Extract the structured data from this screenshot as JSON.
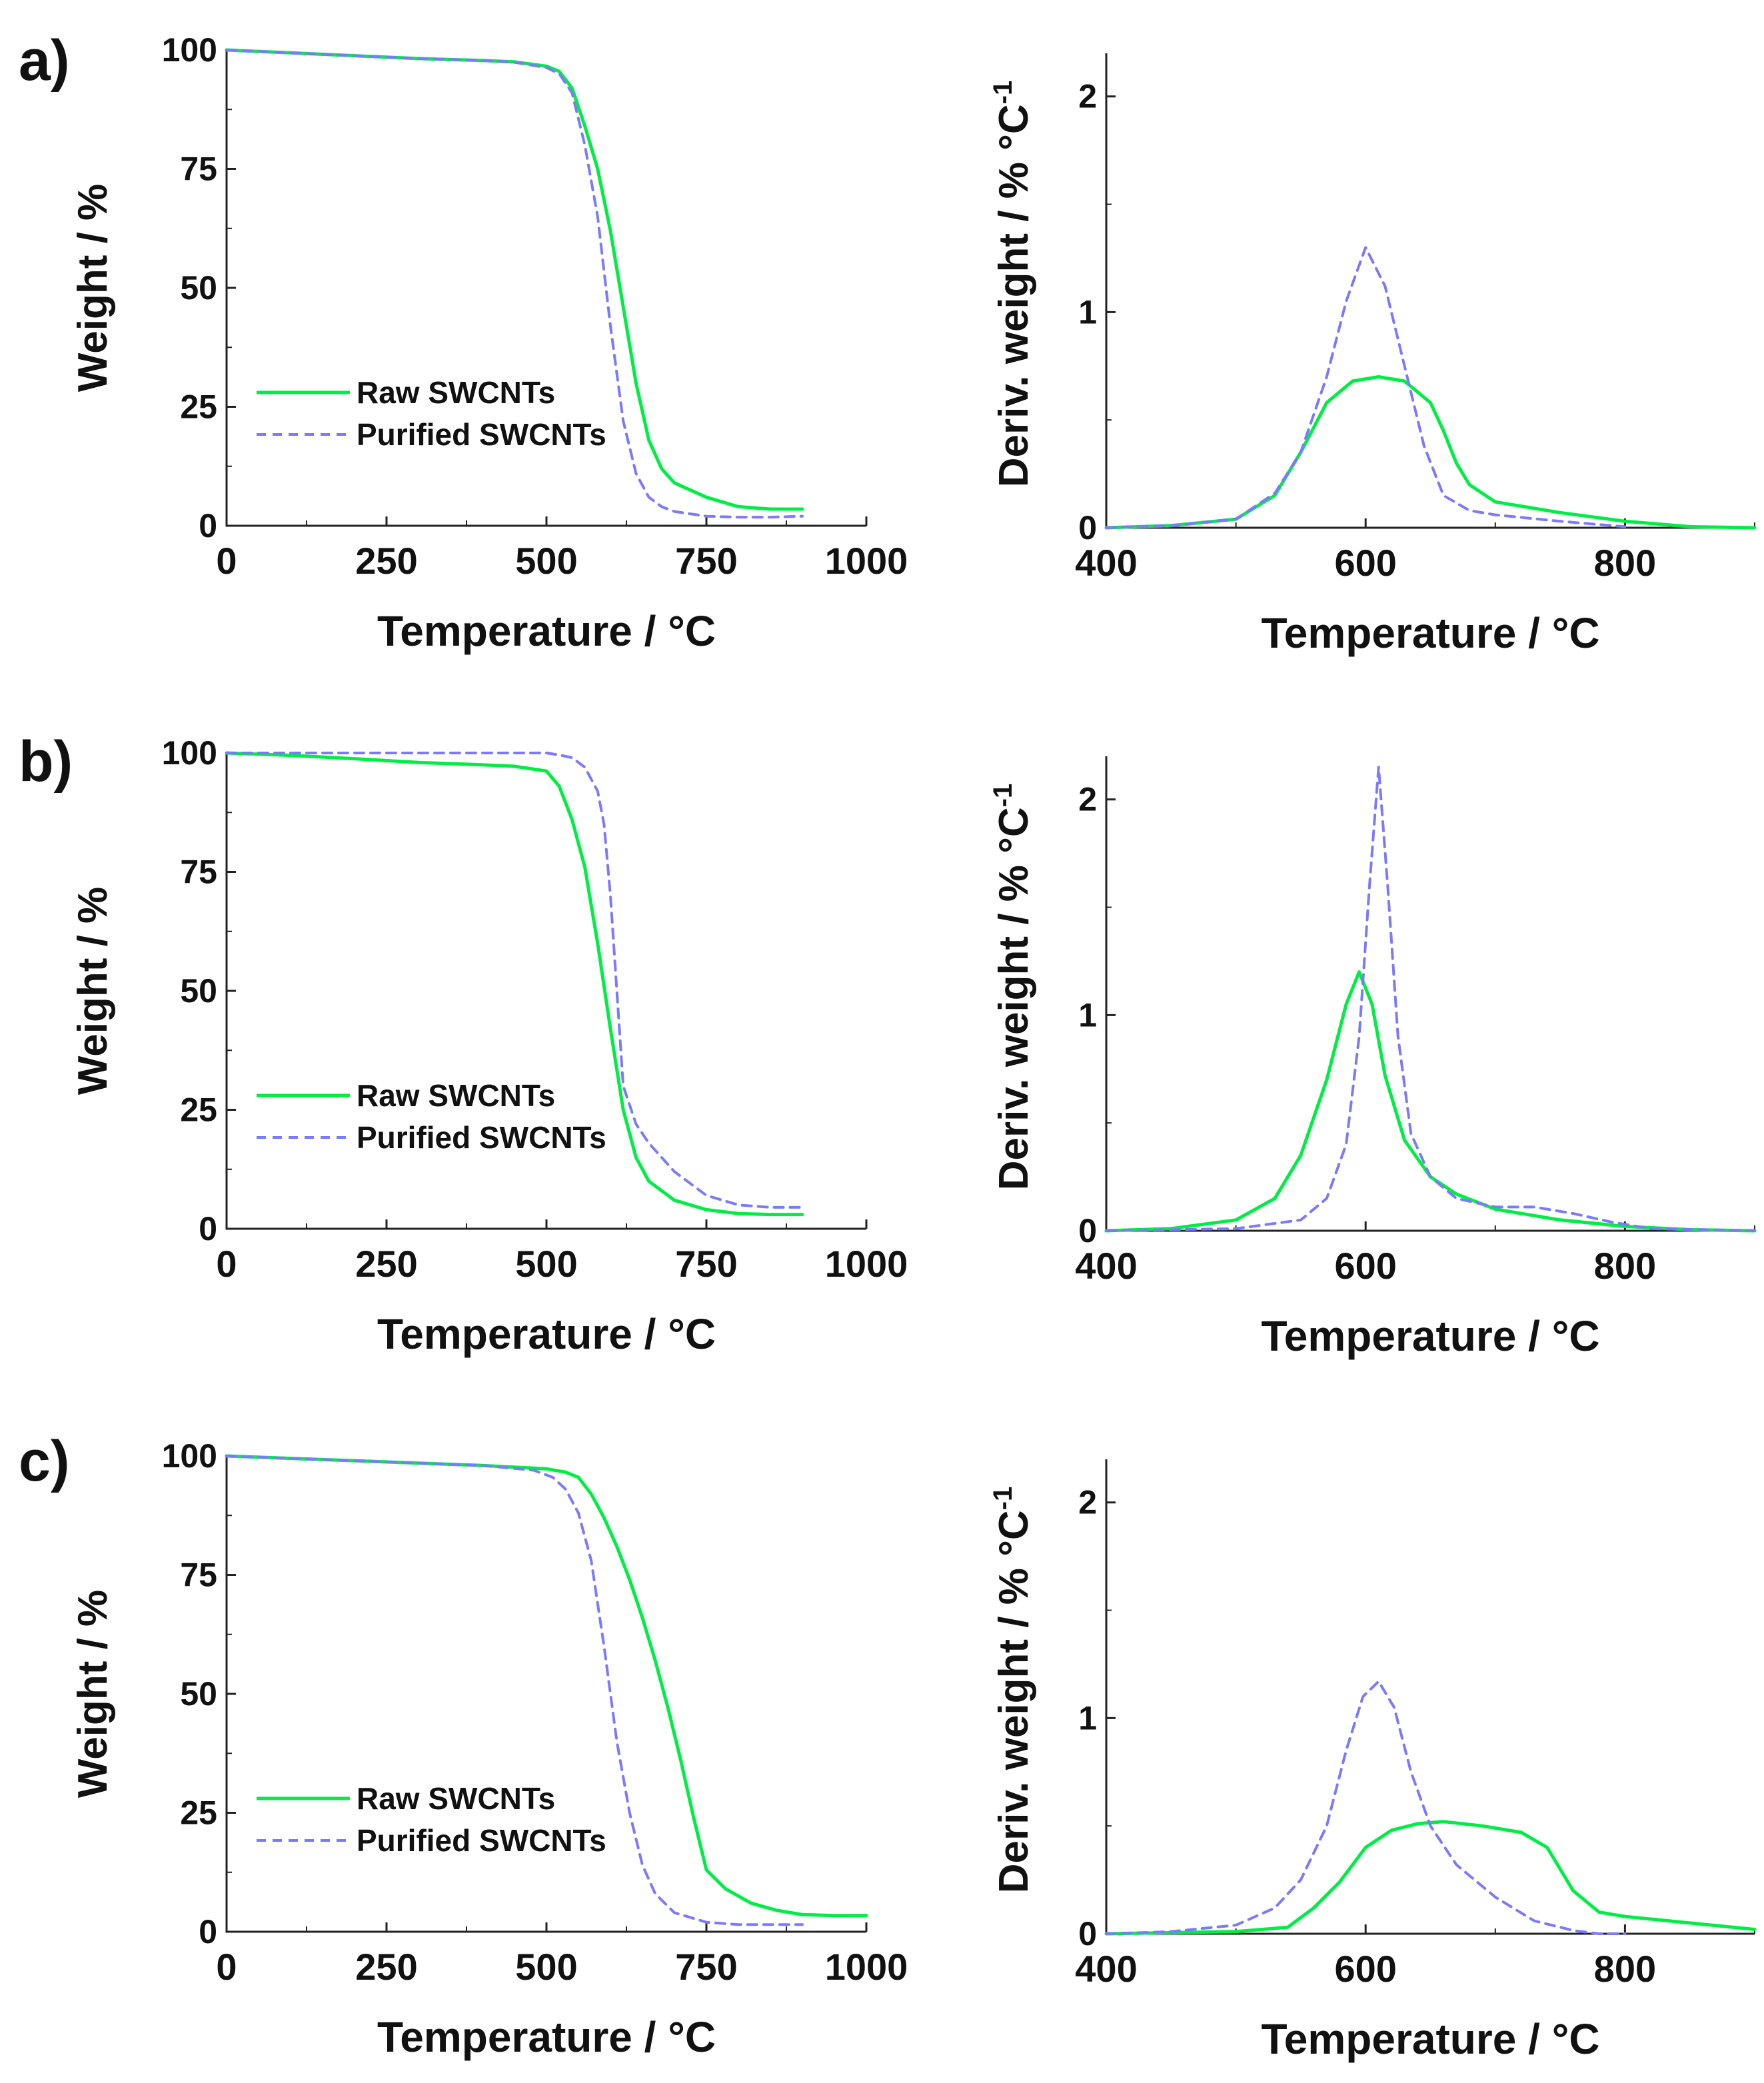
{
  "colors": {
    "raw": "#00ee44",
    "purified": "#7a7aff",
    "axis": "#222222"
  },
  "panels": [
    {
      "label": "a)"
    },
    {
      "label": "b)"
    },
    {
      "label": "c)"
    }
  ],
  "chart_data": [
    {
      "panel": "a)",
      "type": "line",
      "xlabel": "Temperature / °C",
      "ylabel": "Weight / %",
      "xlim": [
        0,
        1000
      ],
      "ylim": [
        0,
        100
      ],
      "xticks": [
        0,
        250,
        500,
        750,
        1000
      ],
      "yticks": [
        0,
        25,
        50,
        75,
        100
      ],
      "legend": {
        "position": "bottom-left",
        "entries": [
          "Raw SWCNTs",
          "Purified SWCNTs"
        ]
      },
      "series": [
        {
          "name": "Raw SWCNTs",
          "style": "solid",
          "x": [
            0,
            100,
            200,
            300,
            400,
            450,
            500,
            520,
            540,
            560,
            580,
            600,
            620,
            640,
            660,
            680,
            700,
            750,
            800,
            850,
            900
          ],
          "y": [
            100,
            99.4,
            98.8,
            98.2,
            97.8,
            97.5,
            96.6,
            95.5,
            92,
            84,
            75,
            62,
            46,
            30,
            18,
            12,
            9,
            6,
            4,
            3.5,
            3.5
          ]
        },
        {
          "name": "Purified SWCNTs",
          "style": "dashed",
          "x": [
            0,
            100,
            200,
            300,
            400,
            450,
            500,
            520,
            540,
            560,
            580,
            600,
            620,
            640,
            660,
            680,
            700,
            750,
            800,
            850,
            900
          ],
          "y": [
            100,
            99.4,
            98.8,
            98.2,
            97.8,
            97.4,
            96.3,
            95,
            91,
            80,
            65,
            42,
            22,
            11,
            6,
            4,
            3,
            2,
            1.8,
            1.8,
            2
          ]
        }
      ]
    },
    {
      "panel": "a)",
      "type": "line",
      "xlabel": "Temperature / °C",
      "ylabel": "Deriv. weight / % °C-1",
      "xlim": [
        400,
        900
      ],
      "ylim": [
        0,
        2.2
      ],
      "xticks": [
        400,
        600,
        800
      ],
      "yticks": [
        0,
        1,
        2
      ],
      "series": [
        {
          "name": "Raw SWCNTs",
          "style": "solid",
          "x": [
            400,
            450,
            500,
            530,
            550,
            570,
            590,
            610,
            630,
            650,
            660,
            670,
            680,
            700,
            750,
            800,
            850,
            900
          ],
          "y": [
            0.0,
            0.01,
            0.04,
            0.15,
            0.35,
            0.58,
            0.68,
            0.7,
            0.68,
            0.58,
            0.45,
            0.3,
            0.2,
            0.12,
            0.07,
            0.03,
            0.005,
            0.0
          ]
        },
        {
          "name": "Purified SWCNTs",
          "style": "dashed",
          "x": [
            400,
            450,
            500,
            530,
            550,
            570,
            585,
            600,
            615,
            630,
            645,
            660,
            680,
            700,
            750,
            800
          ],
          "y": [
            0.0,
            0.01,
            0.04,
            0.16,
            0.35,
            0.7,
            1.05,
            1.3,
            1.12,
            0.75,
            0.38,
            0.15,
            0.08,
            0.06,
            0.03,
            0.005
          ]
        }
      ]
    },
    {
      "panel": "b)",
      "type": "line",
      "xlabel": "Temperature / °C",
      "ylabel": "Weight / %",
      "xlim": [
        0,
        1000
      ],
      "ylim": [
        0,
        100
      ],
      "xticks": [
        0,
        250,
        500,
        750,
        1000
      ],
      "yticks": [
        0,
        25,
        50,
        75,
        100
      ],
      "legend": {
        "position": "bottom-left",
        "entries": [
          "Raw SWCNTs",
          "Purified SWCNTs"
        ]
      },
      "series": [
        {
          "name": "Raw SWCNTs",
          "style": "solid",
          "x": [
            0,
            100,
            200,
            300,
            400,
            450,
            500,
            520,
            540,
            560,
            580,
            600,
            620,
            640,
            660,
            700,
            750,
            800,
            850,
            900
          ],
          "y": [
            100,
            99.5,
            98.8,
            98,
            97.5,
            97.2,
            96.2,
            93,
            86,
            76,
            60,
            42,
            25,
            15,
            10,
            6,
            4,
            3.2,
            3,
            3
          ]
        },
        {
          "name": "Purified SWCNTs",
          "style": "dashed",
          "x": [
            0,
            100,
            200,
            300,
            400,
            450,
            500,
            520,
            540,
            560,
            580,
            590,
            600,
            610,
            620,
            640,
            660,
            700,
            750,
            800,
            850,
            900
          ],
          "y": [
            100,
            100,
            100,
            100,
            100,
            100,
            100,
            99.6,
            99,
            97,
            92,
            85,
            70,
            50,
            30,
            22,
            18,
            12,
            7,
            5,
            4.5,
            4.5
          ]
        }
      ]
    },
    {
      "panel": "b)",
      "type": "line",
      "xlabel": "Temperature / °C",
      "ylabel": "Deriv. weight / % °C-1",
      "xlim": [
        400,
        900
      ],
      "ylim": [
        0,
        2.2
      ],
      "xticks": [
        400,
        600,
        800
      ],
      "yticks": [
        0,
        1,
        2
      ],
      "series": [
        {
          "name": "Raw SWCNTs",
          "style": "solid",
          "x": [
            400,
            450,
            500,
            530,
            550,
            570,
            585,
            595,
            605,
            615,
            630,
            650,
            670,
            700,
            750,
            800,
            850,
            900
          ],
          "y": [
            0.0,
            0.01,
            0.05,
            0.15,
            0.35,
            0.7,
            1.05,
            1.2,
            1.05,
            0.72,
            0.42,
            0.25,
            0.17,
            0.1,
            0.05,
            0.02,
            0.005,
            0.0
          ]
        },
        {
          "name": "Purified SWCNTs",
          "style": "dashed",
          "x": [
            400,
            500,
            550,
            570,
            585,
            595,
            603,
            610,
            617,
            625,
            635,
            650,
            670,
            700,
            730,
            760,
            790,
            820,
            900
          ],
          "y": [
            0.0,
            0.01,
            0.05,
            0.15,
            0.4,
            0.9,
            1.6,
            2.15,
            1.6,
            0.9,
            0.45,
            0.25,
            0.15,
            0.11,
            0.11,
            0.08,
            0.04,
            0.01,
            0.0
          ]
        }
      ]
    },
    {
      "panel": "c)",
      "type": "line",
      "xlabel": "Temperature / °C",
      "ylabel": "Weight / %",
      "xlim": [
        0,
        1000
      ],
      "ylim": [
        0,
        100
      ],
      "xticks": [
        0,
        250,
        500,
        750,
        1000
      ],
      "yticks": [
        0,
        25,
        50,
        75,
        100
      ],
      "legend": {
        "position": "bottom-left",
        "entries": [
          "Raw SWCNTs",
          "Purified SWCNTs"
        ]
      },
      "series": [
        {
          "name": "Raw SWCNTs",
          "style": "solid",
          "x": [
            0,
            100,
            200,
            300,
            400,
            500,
            530,
            550,
            570,
            590,
            610,
            630,
            650,
            670,
            690,
            710,
            730,
            750,
            780,
            820,
            860,
            900,
            950,
            1000
          ],
          "y": [
            100,
            99.5,
            99,
            98.5,
            98,
            97.3,
            96.6,
            95.5,
            92,
            87,
            81,
            74,
            66,
            57,
            47,
            36,
            24,
            13,
            9,
            6,
            4.5,
            3.6,
            3.4,
            3.4
          ]
        },
        {
          "name": "Purified SWCNTs",
          "style": "dashed",
          "x": [
            0,
            100,
            200,
            300,
            400,
            480,
            510,
            530,
            550,
            570,
            590,
            610,
            630,
            650,
            670,
            700,
            750,
            800,
            850,
            900
          ],
          "y": [
            100,
            99.5,
            99,
            98.5,
            98,
            97,
            95.5,
            93,
            88,
            78,
            60,
            40,
            25,
            14,
            8,
            4,
            2,
            1.5,
            1.5,
            1.5
          ]
        }
      ]
    },
    {
      "panel": "c)",
      "type": "line",
      "xlabel": "Temperature / °C",
      "ylabel": "Deriv. weight / % °C-1",
      "xlim": [
        400,
        900
      ],
      "ylim": [
        0,
        2.2
      ],
      "xticks": [
        400,
        600,
        800
      ],
      "yticks": [
        0,
        1,
        2
      ],
      "series": [
        {
          "name": "Raw SWCNTs",
          "style": "solid",
          "x": [
            400,
            450,
            500,
            540,
            560,
            580,
            600,
            620,
            640,
            660,
            690,
            720,
            740,
            760,
            780,
            800,
            850,
            900
          ],
          "y": [
            0.0,
            0.005,
            0.01,
            0.03,
            0.12,
            0.24,
            0.4,
            0.48,
            0.51,
            0.52,
            0.5,
            0.47,
            0.4,
            0.2,
            0.1,
            0.08,
            0.05,
            0.02
          ]
        },
        {
          "name": "Purified SWCNTs",
          "style": "dashed",
          "x": [
            400,
            450,
            500,
            530,
            550,
            570,
            585,
            598,
            610,
            622,
            635,
            650,
            670,
            700,
            730,
            760,
            780,
            800
          ],
          "y": [
            0.0,
            0.01,
            0.04,
            0.12,
            0.25,
            0.5,
            0.85,
            1.1,
            1.17,
            1.05,
            0.75,
            0.5,
            0.32,
            0.17,
            0.06,
            0.015,
            0.0,
            0.0
          ]
        }
      ]
    }
  ]
}
